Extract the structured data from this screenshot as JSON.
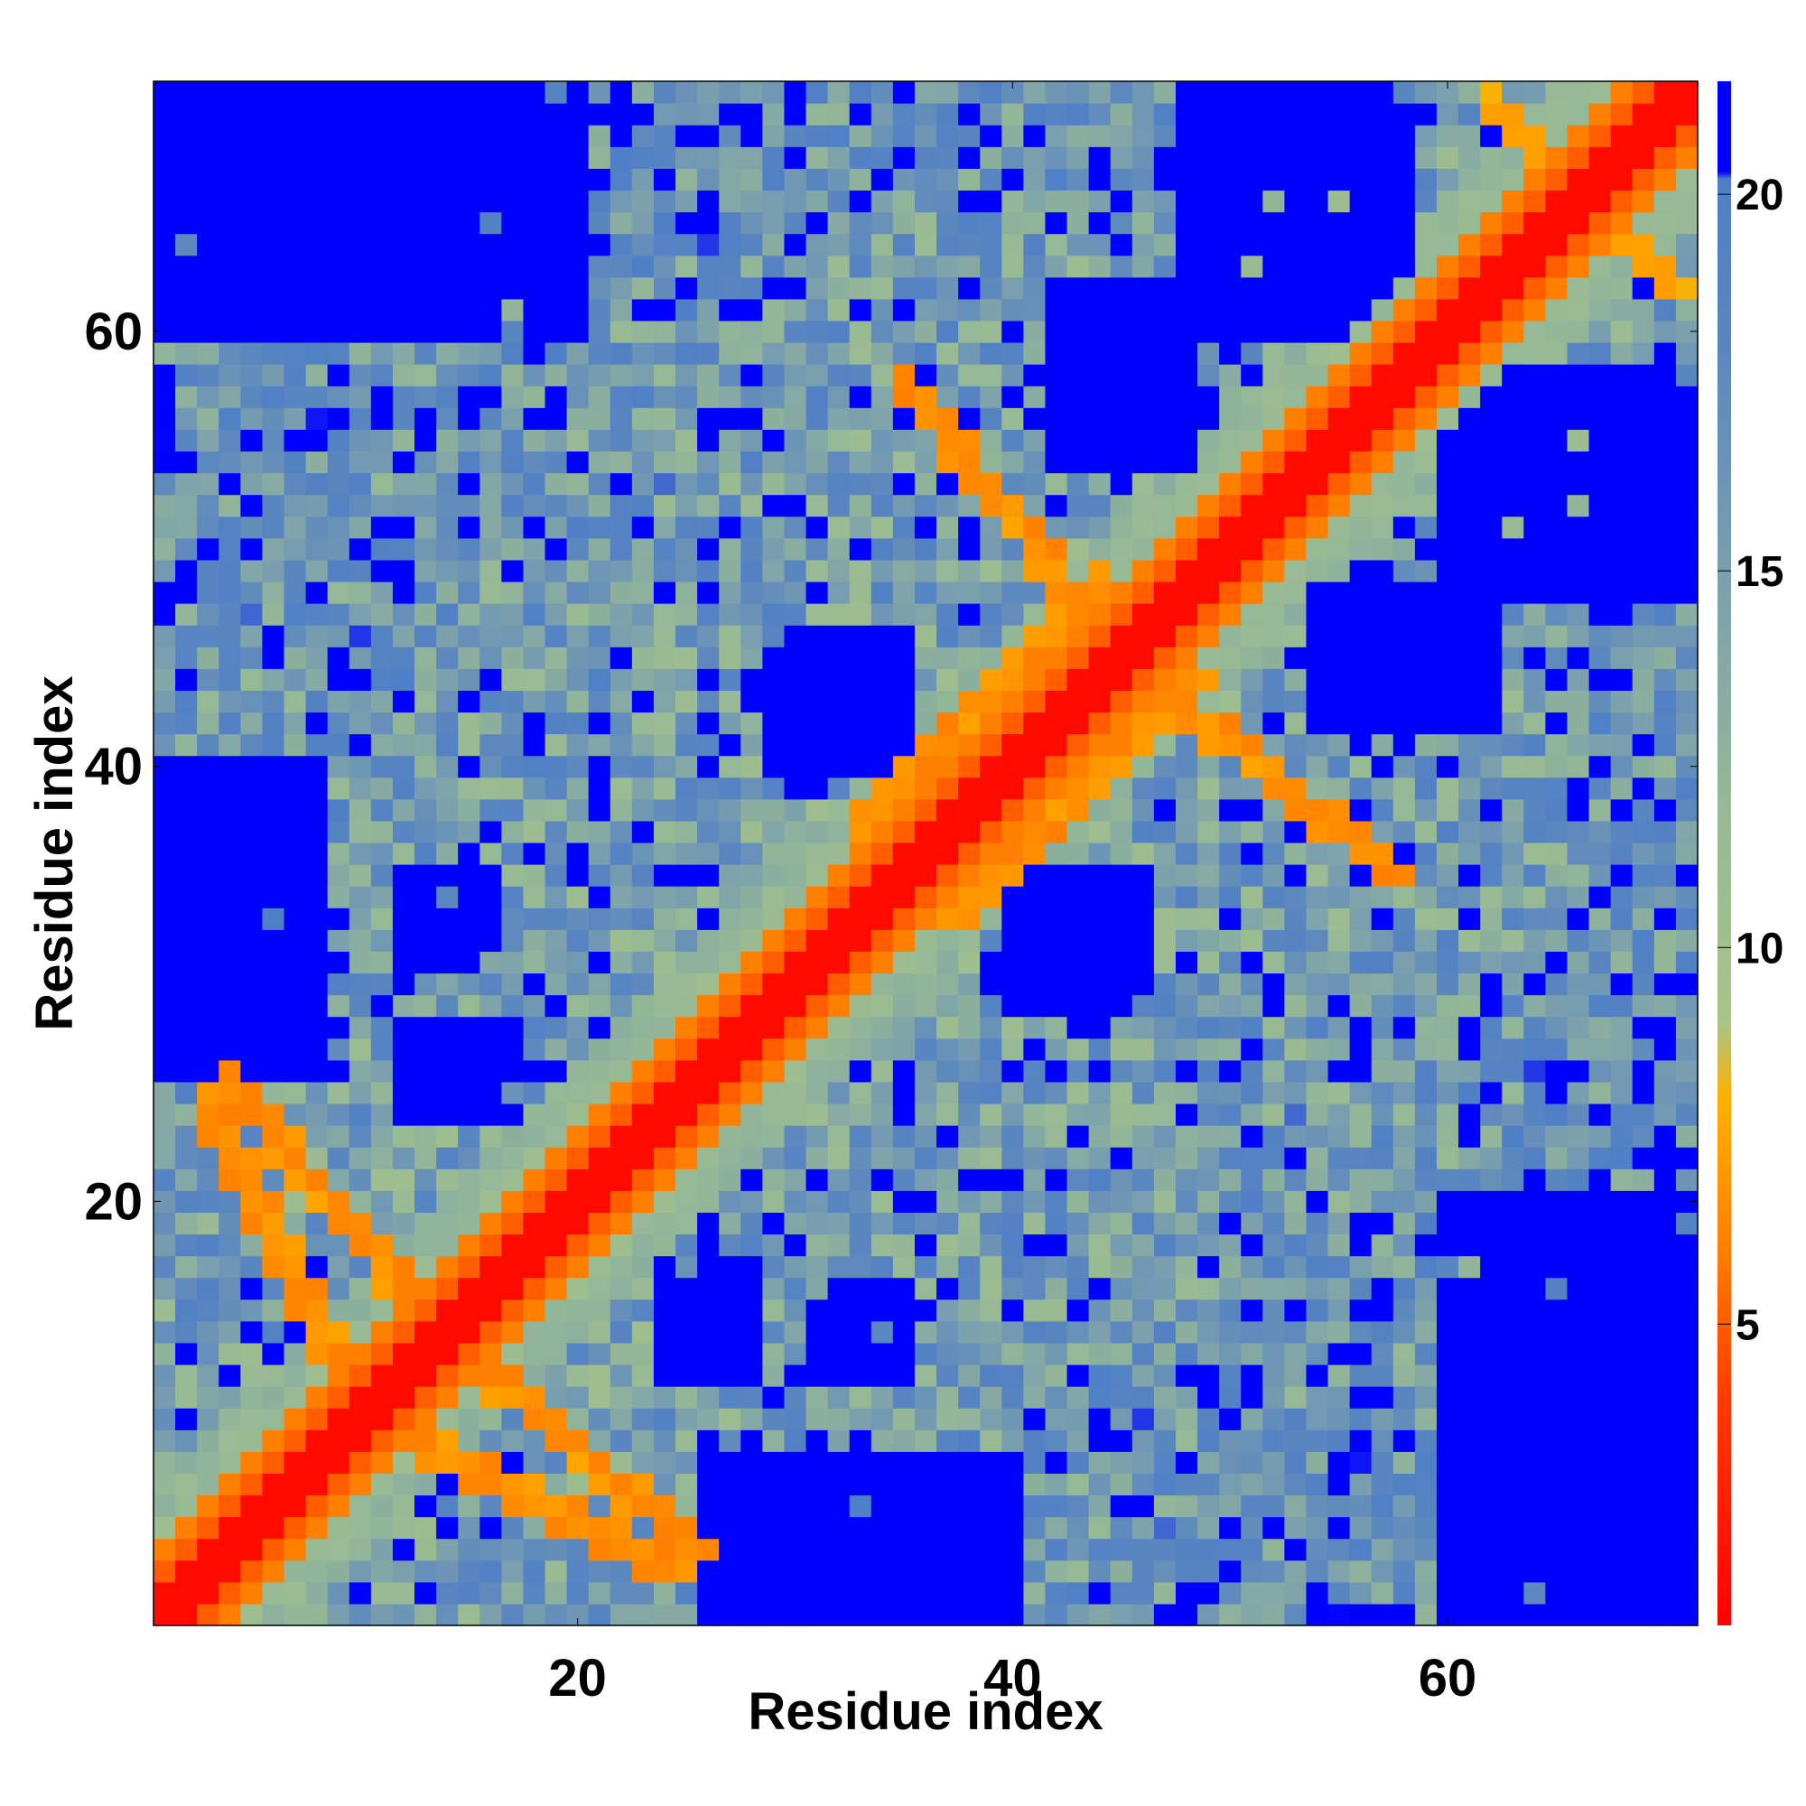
{
  "chart_data": {
    "type": "heatmap",
    "title": "",
    "xlabel": "Residue index",
    "ylabel": "Residue index",
    "n_residues": 71,
    "xlim": [
      0.5,
      71.5
    ],
    "ylim": [
      0.5,
      71.5
    ],
    "xticks": [
      20,
      40,
      60
    ],
    "yticks": [
      20,
      40,
      60
    ],
    "colorbar": {
      "ticks": [
        5,
        10,
        15,
        20
      ],
      "range": [
        1,
        21.5
      ],
      "stops": [
        {
          "value": 1,
          "color": "#ff0000"
        },
        {
          "value": 4,
          "color": "#ff3a00"
        },
        {
          "value": 6,
          "color": "#ff7f00"
        },
        {
          "value": 8,
          "color": "#ffb000"
        },
        {
          "value": 9,
          "color": "#a8c488"
        },
        {
          "value": 12,
          "color": "#95b896"
        },
        {
          "value": 15,
          "color": "#7a9fae"
        },
        {
          "value": 18,
          "color": "#5a86c0"
        },
        {
          "value": 20.2,
          "color": "#4f7fc6"
        },
        {
          "value": 20.3,
          "color": "#0000ff"
        },
        {
          "value": 21.5,
          "color": "#0000ff"
        }
      ]
    },
    "cell_description": "Symmetric residue–residue distance map (Å-like scale). Diagonal values ~1-3 (red); near-diagonal bands and contacts 5-8 (orange); mid-range 9-18 (green-to-blue); values above 20 saturate to blue.",
    "contact_bands": [
      {
        "from": [
          4,
          25
        ],
        "to": [
          13,
          14
        ],
        "value": 6
      },
      {
        "from": [
          13,
          8
        ],
        "to": [
          24,
          3
        ],
        "value": 6
      },
      {
        "from": [
          33,
          37
        ],
        "to": [
          44,
          48
        ],
        "value": 6
      },
      {
        "from": [
          47,
          43
        ],
        "to": [
          57,
          35
        ],
        "value": 6
      },
      {
        "from": [
          34,
          32
        ],
        "to": [
          37,
          35
        ],
        "value": 6
      },
      {
        "from": [
          62,
          70
        ],
        "to": [
          70,
          62
        ],
        "value": 7
      }
    ],
    "far_regions": [
      {
        "x": [
          1,
          20
        ],
        "y": [
          60,
          71
        ],
        "value": 21
      },
      {
        "x": [
          60,
          71
        ],
        "y": [
          1,
          20
        ],
        "value": 21
      },
      {
        "x": [
          1,
          8
        ],
        "y": [
          26,
          40
        ],
        "value": 21
      },
      {
        "x": [
          26,
          40
        ],
        "y": [
          1,
          8
        ],
        "value": 21
      },
      {
        "x": [
          48,
          58
        ],
        "y": [
          60,
          71
        ],
        "value": 21
      },
      {
        "x": [
          60,
          71
        ],
        "y": [
          48,
          58
        ],
        "value": 21
      },
      {
        "x": [
          24,
          28
        ],
        "y": [
          12,
          17
        ],
        "value": 21
      },
      {
        "x": [
          12,
          17
        ],
        "y": [
          24,
          28
        ],
        "value": 21
      },
      {
        "x": [
          40,
          46
        ],
        "y": [
          29,
          35
        ],
        "value": 21
      },
      {
        "x": [
          29,
          35
        ],
        "y": [
          40,
          46
        ],
        "value": 21
      },
      {
        "x": [
          54,
          62
        ],
        "y": [
          42,
          48
        ],
        "value": 21
      },
      {
        "x": [
          42,
          48
        ],
        "y": [
          54,
          62
        ],
        "value": 21
      },
      {
        "x": [
          31,
          35
        ],
        "y": [
          12,
          16
        ],
        "value": 21
      },
      {
        "x": [
          12,
          16
        ],
        "y": [
          31,
          35
        ],
        "value": 21
      }
    ],
    "seed": 7
  }
}
